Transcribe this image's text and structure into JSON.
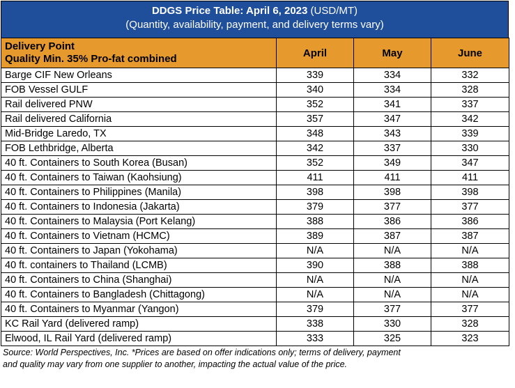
{
  "title": {
    "main": "DDGS Price Table: April 6, 2023",
    "unit": " (USD/MT)",
    "subtitle": "(Quantity, availability, payment, and delivery terms vary)"
  },
  "header": {
    "col0_line1": "Delivery Point",
    "col0_line2": "Quality Min. 35% Pro-fat combined",
    "april": "April",
    "may": "May",
    "june": "June"
  },
  "rows": [
    {
      "loc": "Barge CIF New Orleans",
      "april": "339",
      "may": "334",
      "june": "332"
    },
    {
      "loc": "FOB Vessel GULF",
      "april": "340",
      "may": "334",
      "june": "328"
    },
    {
      "loc": "Rail delivered PNW",
      "april": "352",
      "may": "341",
      "june": "337"
    },
    {
      "loc": "Rail delivered California",
      "april": "357",
      "may": "347",
      "june": "342"
    },
    {
      "loc": "Mid-Bridge Laredo, TX",
      "april": "348",
      "may": "343",
      "june": "339"
    },
    {
      "loc": "FOB Lethbridge, Alberta",
      "april": "342",
      "may": "337",
      "june": "330"
    },
    {
      "loc": "40 ft. Containers to South Korea (Busan)",
      "april": "352",
      "may": "349",
      "june": "347"
    },
    {
      "loc": "40 ft. Containers to Taiwan (Kaohsiung)",
      "april": "411",
      "may": "411",
      "june": "411"
    },
    {
      "loc": "40 ft. Containers to Philippines (Manila)",
      "april": "398",
      "may": "398",
      "june": "398"
    },
    {
      "loc": "40 ft. Containers to Indonesia (Jakarta)",
      "april": "379",
      "may": "377",
      "june": "377"
    },
    {
      "loc": "40 ft. Containers to Malaysia (Port Kelang)",
      "april": "388",
      "may": "386",
      "june": "386"
    },
    {
      "loc": "40 ft. Containers to Vietnam (HCMC)",
      "april": "389",
      "may": "387",
      "june": "387"
    },
    {
      "loc": "40 ft. Containers to Japan (Yokohama)",
      "april": "N/A",
      "may": "N/A",
      "june": "N/A"
    },
    {
      "loc": "40 ft. containers to Thailand (LCMB)",
      "april": "390",
      "may": "388",
      "june": "388"
    },
    {
      "loc": "40 ft. Containers to China (Shanghai)",
      "april": "N/A",
      "may": "N/A",
      "june": "N/A"
    },
    {
      "loc": "40 ft. Containers to Bangladesh (Chittagong)",
      "april": "N/A",
      "may": "N/A",
      "june": "N/A"
    },
    {
      "loc": "40 ft. Containers to Myanmar (Yangon)",
      "april": "379",
      "may": "377",
      "june": "377"
    },
    {
      "loc": "KC Rail Yard (delivered ramp)",
      "april": "338",
      "may": "330",
      "june": "328"
    },
    {
      "loc": "Elwood, IL Rail Yard (delivered ramp)",
      "april": "333",
      "may": "325",
      "june": "323"
    }
  ],
  "source": {
    "line1": "Source: World Perspectives, Inc. *Prices are based on offer indications only; terms of delivery, payment",
    "line2": "and quality may vary from one supplier to another, impacting the actual value of the price."
  },
  "colors": {
    "title_bg": "#1f4e9a",
    "header_bg": "#e69a2e"
  }
}
